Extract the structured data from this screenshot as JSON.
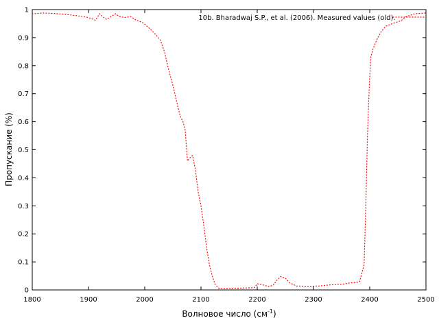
{
  "chart_data": {
    "type": "line",
    "xlabel": "Волновое число (см",
    "xlabel_sup": "-1",
    "xlabel_end": ")",
    "ylabel": "Пропускание (%)",
    "xlim": [
      1800,
      2500
    ],
    "ylim": [
      0,
      1
    ],
    "x_ticks": [
      "1800",
      "1900",
      "2000",
      "2100",
      "2200",
      "2300",
      "2400",
      "2500"
    ],
    "y_ticks": [
      "0",
      "0.1",
      "0.2",
      "0.3",
      "0.4",
      "0.5",
      "0.6",
      "0.7",
      "0.8",
      "0.9",
      "1"
    ],
    "grid": false,
    "legend_position": "top-right",
    "series": [
      {
        "name": "10b. Bharadwaj S.P., et al. (2006). Measured values (old).",
        "color": "#ff0000",
        "line_style": "dotted",
        "points": [
          [
            1800,
            0.985
          ],
          [
            1820,
            0.988
          ],
          [
            1840,
            0.986
          ],
          [
            1860,
            0.983
          ],
          [
            1880,
            0.978
          ],
          [
            1900,
            0.972
          ],
          [
            1912,
            0.962
          ],
          [
            1920,
            0.985
          ],
          [
            1925,
            0.975
          ],
          [
            1932,
            0.965
          ],
          [
            1940,
            0.975
          ],
          [
            1948,
            0.985
          ],
          [
            1955,
            0.975
          ],
          [
            1965,
            0.972
          ],
          [
            1975,
            0.975
          ],
          [
            1985,
            0.962
          ],
          [
            1995,
            0.955
          ],
          [
            2000,
            0.948
          ],
          [
            2010,
            0.93
          ],
          [
            2020,
            0.91
          ],
          [
            2028,
            0.89
          ],
          [
            2035,
            0.85
          ],
          [
            2042,
            0.79
          ],
          [
            2050,
            0.73
          ],
          [
            2057,
            0.67
          ],
          [
            2063,
            0.62
          ],
          [
            2068,
            0.6
          ],
          [
            2072,
            0.57
          ],
          [
            2076,
            0.46
          ],
          [
            2080,
            0.47
          ],
          [
            2085,
            0.48
          ],
          [
            2090,
            0.43
          ],
          [
            2095,
            0.35
          ],
          [
            2100,
            0.3
          ],
          [
            2105,
            0.23
          ],
          [
            2110,
            0.15
          ],
          [
            2115,
            0.09
          ],
          [
            2120,
            0.05
          ],
          [
            2125,
            0.02
          ],
          [
            2132,
            0.006
          ],
          [
            2140,
            0.005
          ],
          [
            2160,
            0.006
          ],
          [
            2180,
            0.007
          ],
          [
            2195,
            0.008
          ],
          [
            2200,
            0.022
          ],
          [
            2210,
            0.018
          ],
          [
            2220,
            0.012
          ],
          [
            2228,
            0.016
          ],
          [
            2235,
            0.035
          ],
          [
            2242,
            0.048
          ],
          [
            2250,
            0.042
          ],
          [
            2258,
            0.025
          ],
          [
            2270,
            0.014
          ],
          [
            2290,
            0.013
          ],
          [
            2310,
            0.014
          ],
          [
            2330,
            0.018
          ],
          [
            2350,
            0.02
          ],
          [
            2365,
            0.025
          ],
          [
            2375,
            0.026
          ],
          [
            2382,
            0.03
          ],
          [
            2386,
            0.06
          ],
          [
            2390,
            0.09
          ],
          [
            2393,
            0.3
          ],
          [
            2396,
            0.55
          ],
          [
            2399,
            0.72
          ],
          [
            2402,
            0.83
          ],
          [
            2406,
            0.86
          ],
          [
            2412,
            0.89
          ],
          [
            2420,
            0.92
          ],
          [
            2428,
            0.94
          ],
          [
            2440,
            0.95
          ],
          [
            2455,
            0.96
          ],
          [
            2465,
            0.975
          ],
          [
            2480,
            0.985
          ],
          [
            2500,
            0.988
          ]
        ]
      }
    ]
  }
}
